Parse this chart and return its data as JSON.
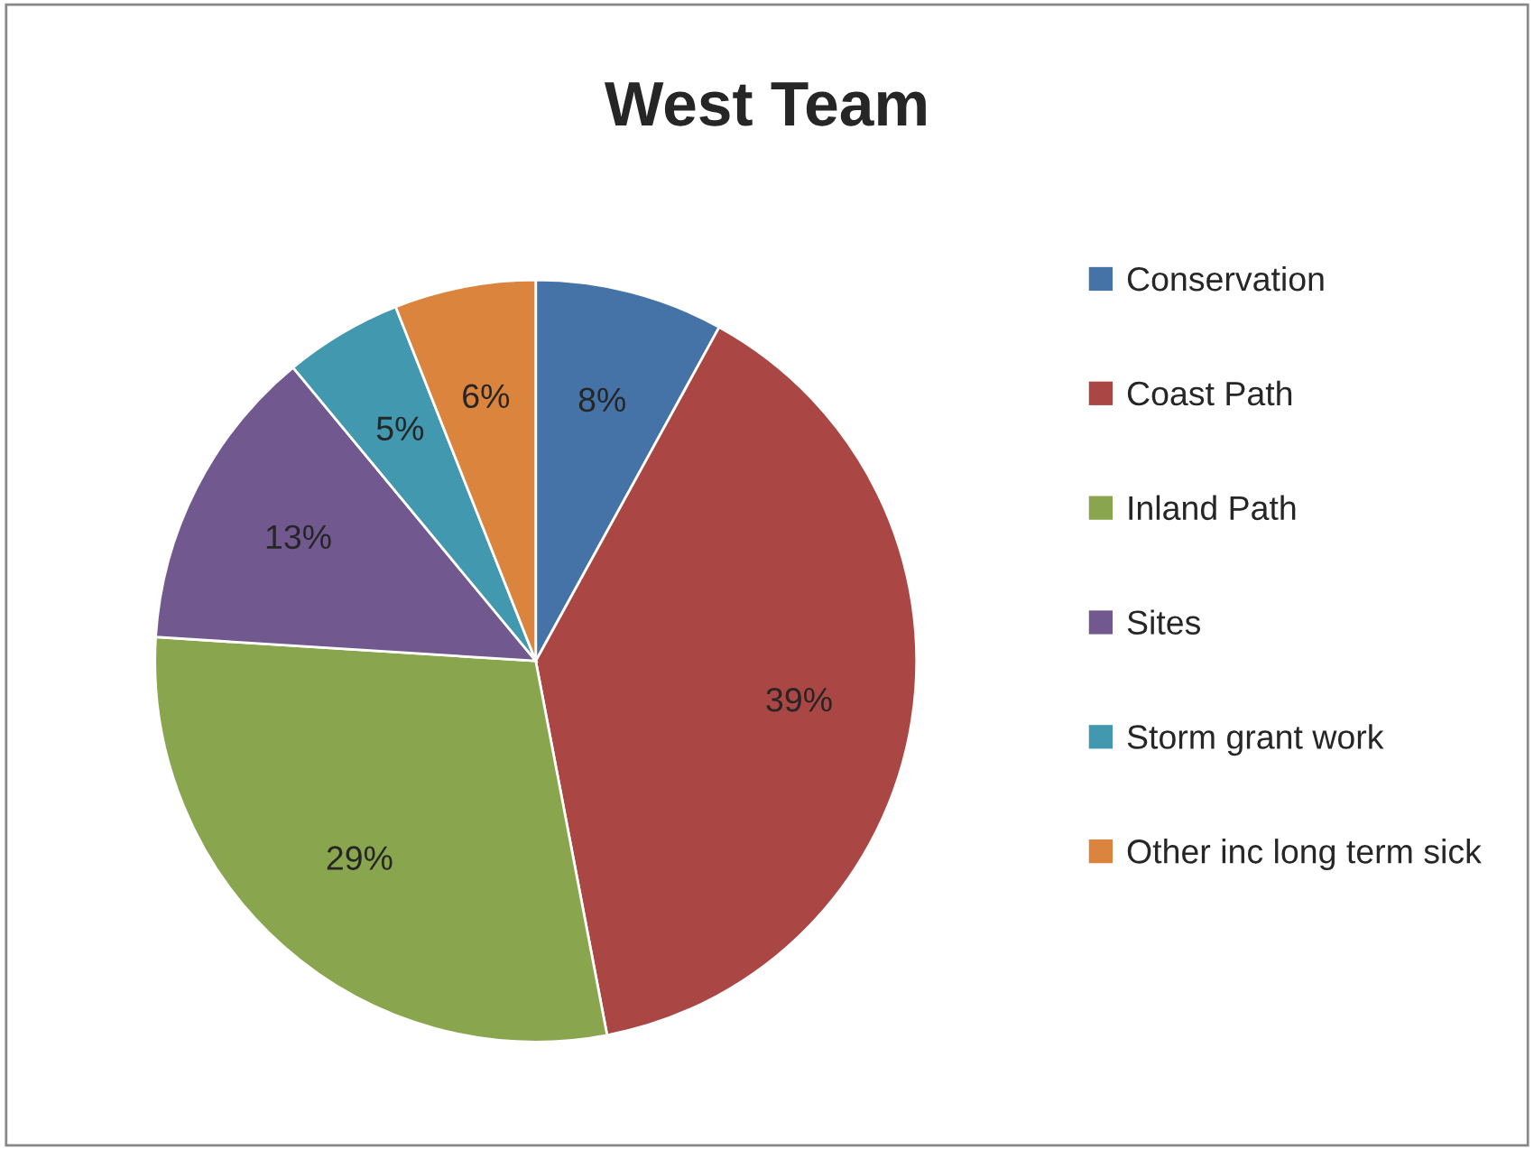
{
  "chart_data": {
    "type": "pie",
    "title": "West Team",
    "categories": [
      "Conservation",
      "Coast Path",
      "Inland Path",
      "Sites",
      "Storm grant work",
      "Other inc long term sick"
    ],
    "values": [
      8,
      39,
      29,
      13,
      5,
      6
    ],
    "value_labels": [
      "8%",
      "39%",
      "29%",
      "13%",
      "5%",
      "6%"
    ],
    "colors": [
      "#4573a7",
      "#aa4643",
      "#89a54e",
      "#71588f",
      "#4198af",
      "#db843d"
    ],
    "legend": "right"
  }
}
